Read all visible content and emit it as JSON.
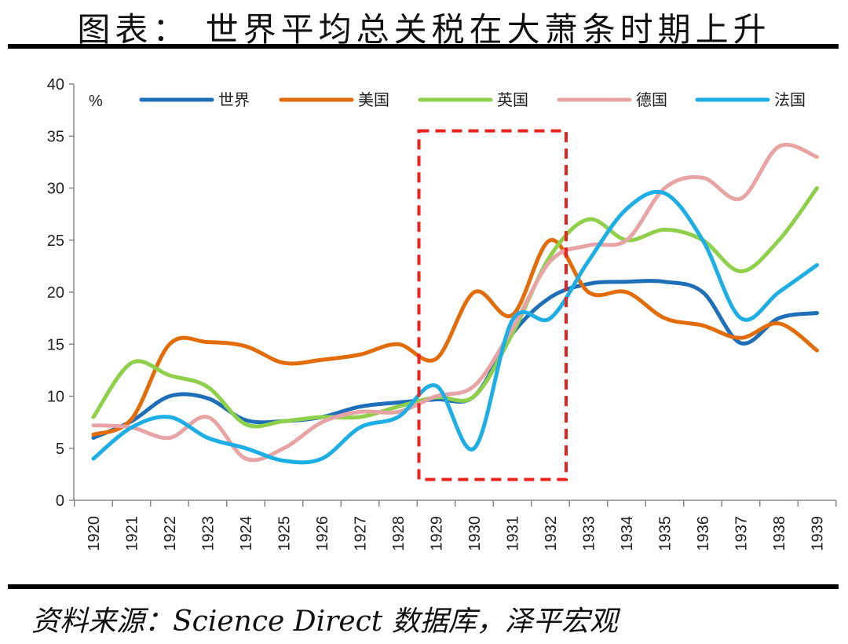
{
  "header": {
    "title": "图表： 世界平均总关税在大萧条时期上升"
  },
  "footer": {
    "source": "资料来源：Science Direct 数据库，泽平宏观"
  },
  "chart_data": {
    "type": "line",
    "title": "图表： 世界平均总关税在大萧条时期上升",
    "ylabel": "%",
    "xlabel": "",
    "ylim": [
      0,
      40
    ],
    "yticks": [
      0,
      5,
      10,
      15,
      20,
      25,
      30,
      35,
      40
    ],
    "x": [
      "1920",
      "1921",
      "1922",
      "1923",
      "1924",
      "1925",
      "1926",
      "1927",
      "1928",
      "1929",
      "1930",
      "1931",
      "1932",
      "1933",
      "1934",
      "1935",
      "1936",
      "1937",
      "1938",
      "1939"
    ],
    "legend_position": "top",
    "grid": false,
    "series": [
      {
        "name": "世界",
        "color": "#1f6fb8",
        "values": [
          6.0,
          7.6,
          10.0,
          9.8,
          7.7,
          7.6,
          8.0,
          9.0,
          9.4,
          9.7,
          10.0,
          16.0,
          19.5,
          20.8,
          21.0,
          21.0,
          20.0,
          15.1,
          17.5,
          18.0
        ]
      },
      {
        "name": "美国",
        "color": "#e36c0a",
        "values": [
          6.3,
          7.8,
          15.0,
          15.2,
          14.8,
          13.2,
          13.5,
          14.0,
          15.0,
          13.6,
          20.0,
          17.8,
          25.0,
          20.0,
          20.0,
          17.5,
          16.8,
          15.6,
          17.0,
          14.4
        ]
      },
      {
        "name": "英国",
        "color": "#8ed04a",
        "values": [
          8.0,
          13.2,
          12.0,
          10.9,
          7.3,
          7.6,
          8.0,
          8.0,
          9.0,
          9.9,
          10.0,
          16.0,
          23.5,
          27.0,
          25.0,
          26.0,
          25.0,
          22.0,
          25.0,
          30.0
        ]
      },
      {
        "name": "德国",
        "color": "#e8a4a4",
        "values": [
          7.2,
          7.0,
          6.0,
          8.0,
          4.0,
          5.0,
          7.5,
          8.5,
          8.5,
          10.0,
          11.0,
          16.5,
          23.0,
          24.5,
          25.0,
          30.0,
          31.0,
          29.0,
          34.0,
          33.0
        ]
      },
      {
        "name": "法国",
        "color": "#1eaee6",
        "values": [
          4.0,
          7.0,
          8.0,
          6.0,
          5.0,
          3.8,
          4.0,
          7.0,
          8.0,
          11.0,
          5.0,
          17.3,
          17.5,
          23.0,
          28.0,
          29.5,
          25.0,
          17.5,
          20.0,
          22.6
        ]
      }
    ],
    "annotations": [
      {
        "type": "dashed-box",
        "color": "#e8231d",
        "x_start": "1929",
        "x_end": "1932",
        "y_from": 2,
        "y_to": 35.5
      }
    ]
  }
}
